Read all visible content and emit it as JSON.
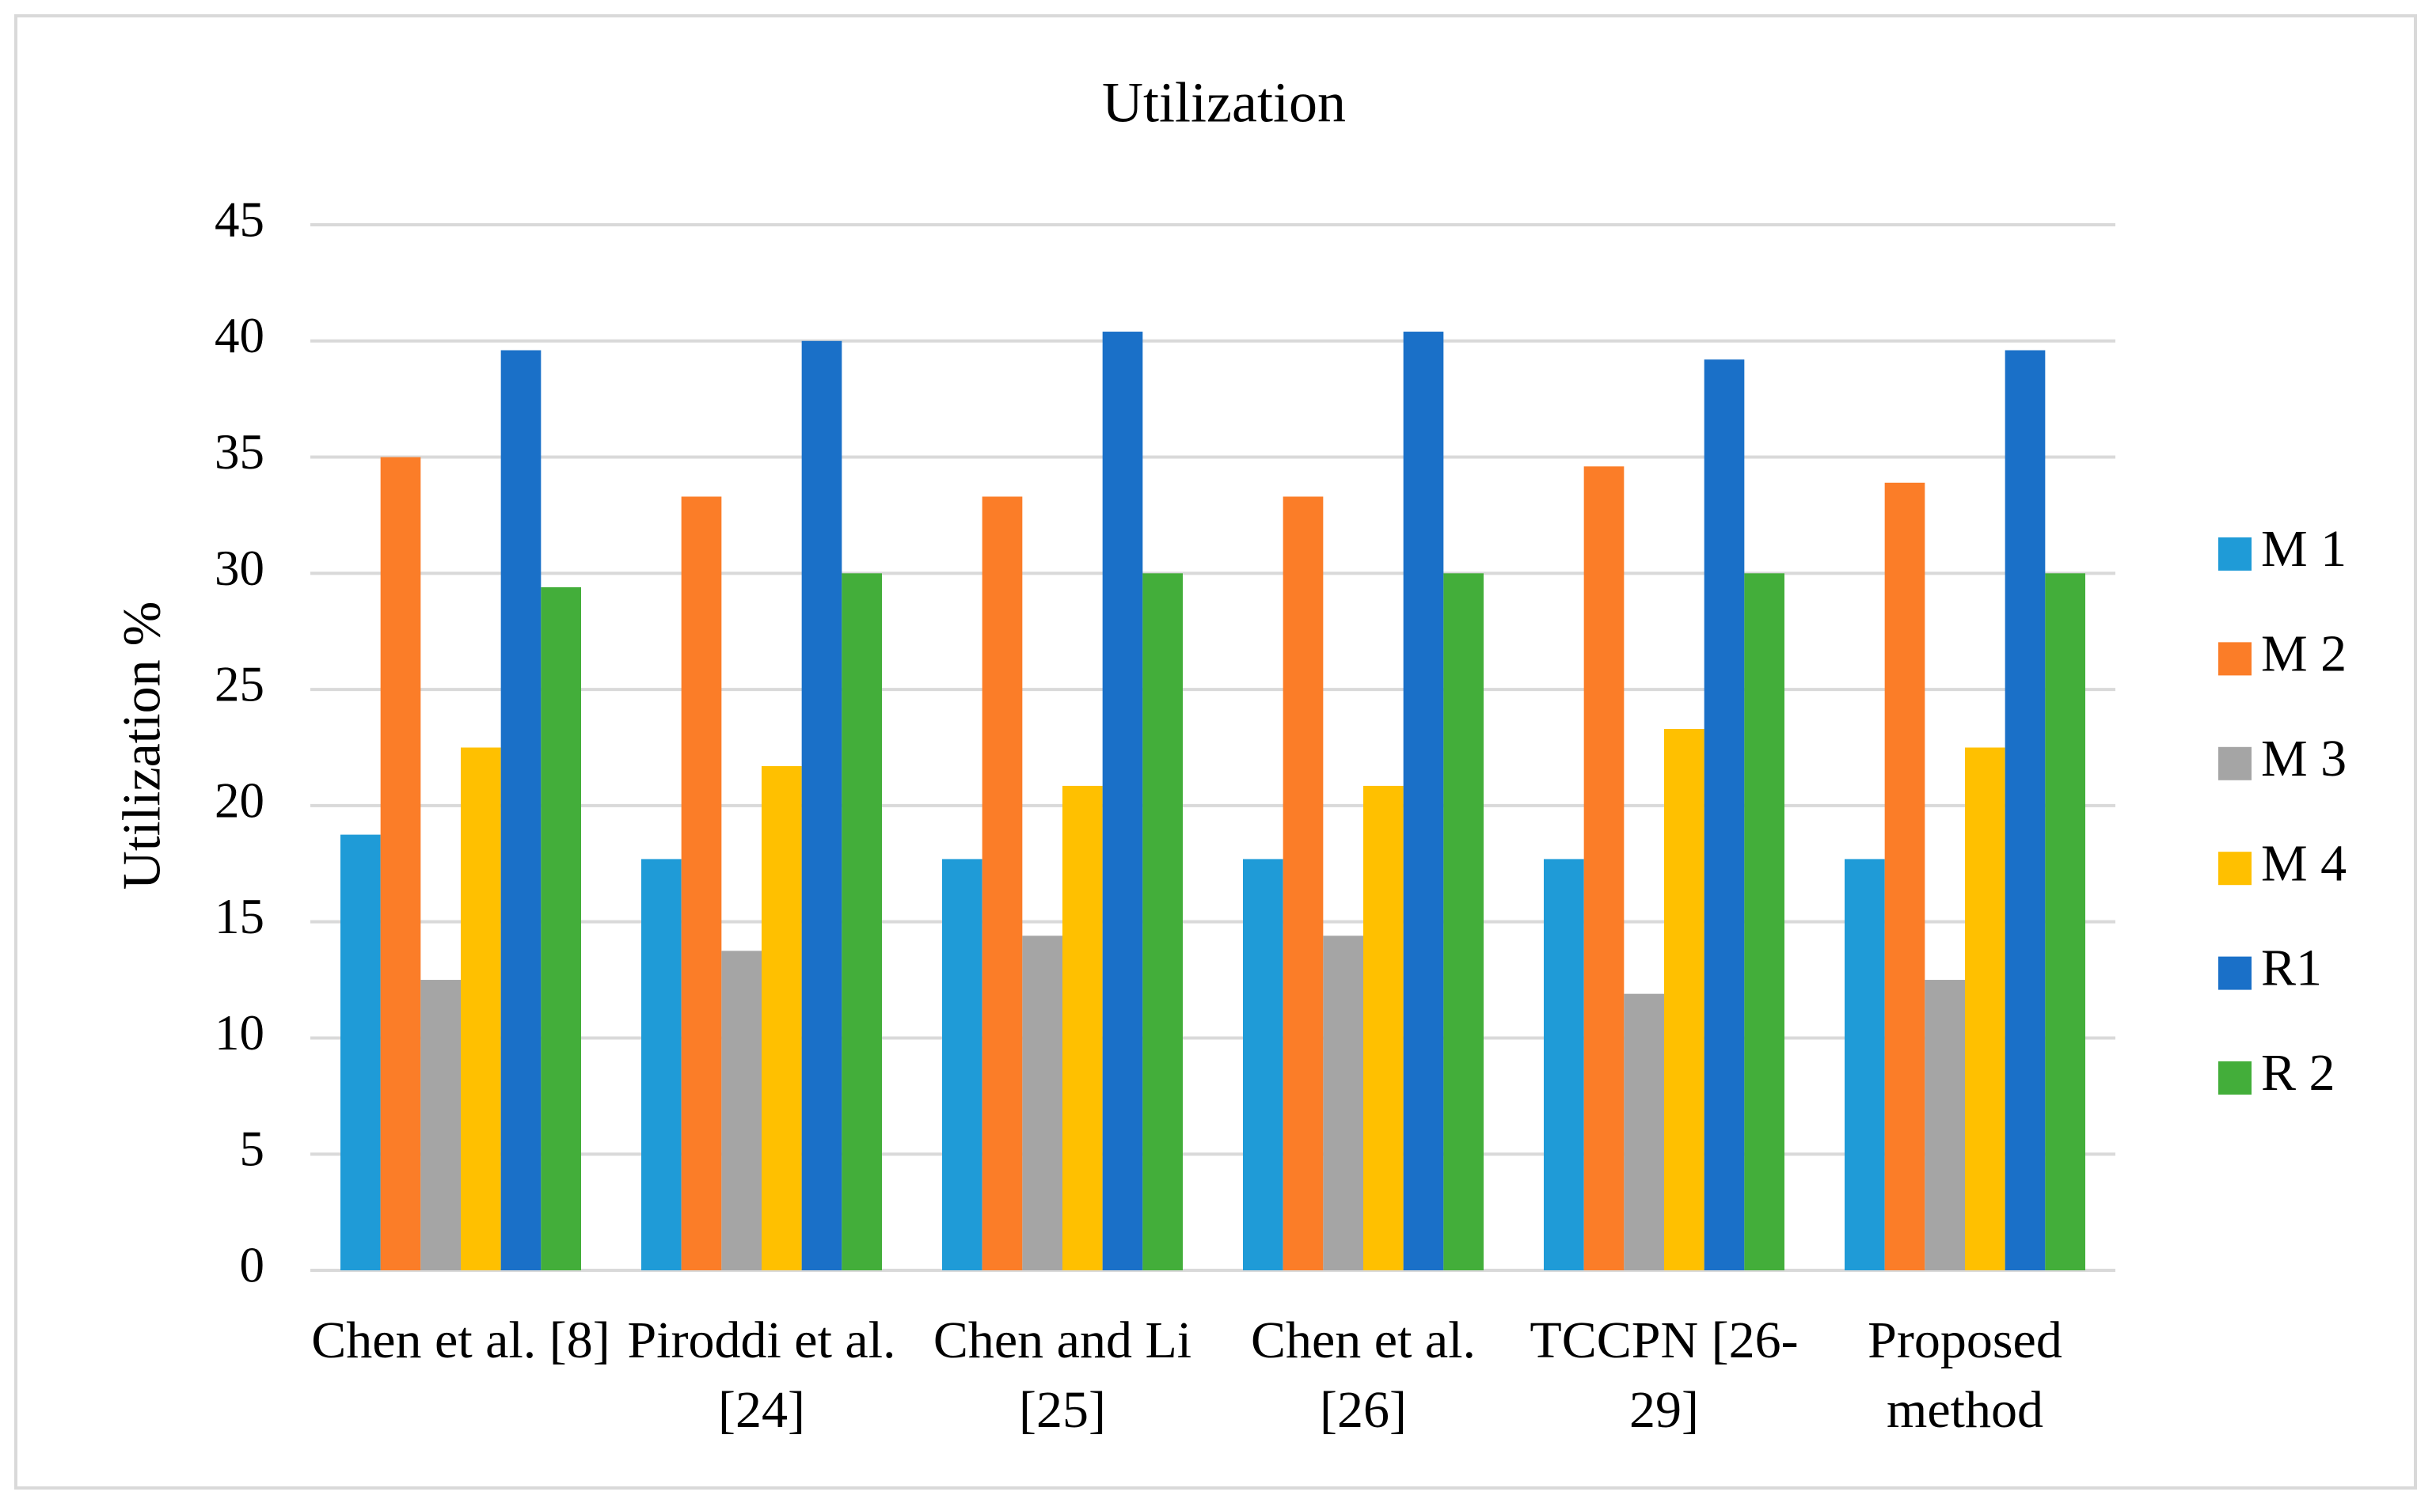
{
  "chart_data": {
    "type": "bar",
    "title": "Utilization",
    "y_label": "Utilization %",
    "categories": [
      "Chen et al. [8]",
      "Piroddi et al. [24]",
      "Chen and Li [25]",
      "Chen et al. [26]",
      "TCCPN [26-29]",
      "Proposed method"
    ],
    "series": [
      {
        "name": "M 1",
        "color": "#1f9bd7",
        "values": [
          18.75,
          17.7,
          17.7,
          17.7,
          17.7,
          17.7
        ]
      },
      {
        "name": "M 2",
        "color": "#fb7d28",
        "values": [
          35,
          33.3,
          33.3,
          33.3,
          34.6,
          33.9
        ]
      },
      {
        "name": "M 3",
        "color": "#a5a5a5",
        "values": [
          12.5,
          13.75,
          14.4,
          14.4,
          11.9,
          12.5
        ]
      },
      {
        "name": "M 4",
        "color": "#ffc000",
        "values": [
          22.5,
          21.7,
          20.85,
          20.85,
          23.3,
          22.5
        ]
      },
      {
        "name": "R1",
        "color": "#1a70c8",
        "values": [
          39.6,
          40,
          40.4,
          40.4,
          39.2,
          39.6
        ]
      },
      {
        "name": "R 2",
        "color": "#43ae3a",
        "values": [
          29.4,
          30,
          30,
          30,
          30,
          30
        ]
      }
    ],
    "ylim": [
      0,
      45
    ],
    "yticks": [
      0,
      5,
      10,
      15,
      20,
      25,
      30,
      35,
      40,
      45
    ],
    "grid": true,
    "legend": "right"
  }
}
